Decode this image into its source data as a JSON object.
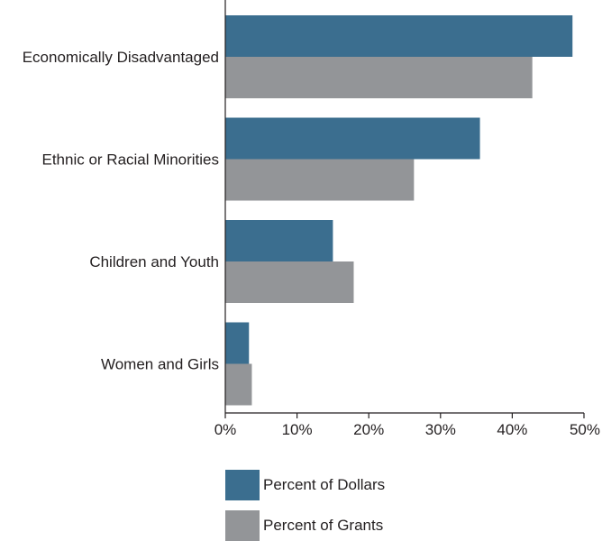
{
  "chart_data": {
    "type": "bar",
    "orientation": "horizontal",
    "categories": [
      "Economically Disadvantaged",
      "Ethnic or Racial Minorities",
      "Children and Youth",
      "Women and Girls"
    ],
    "series": [
      {
        "name": "Percent of Dollars",
        "color": "#3b6e8f",
        "values": [
          48.4,
          35.5,
          15.0,
          3.3
        ]
      },
      {
        "name": "Percent of Grants",
        "color": "#939598",
        "values": [
          42.8,
          26.3,
          17.9,
          3.7
        ]
      }
    ],
    "xlim": [
      0,
      50
    ],
    "xticks": [
      "0%",
      "10%",
      "20%",
      "30%",
      "40%",
      "50%"
    ],
    "title": "",
    "xlabel": "",
    "ylabel": "",
    "grid": false,
    "legend_position": "bottom"
  }
}
